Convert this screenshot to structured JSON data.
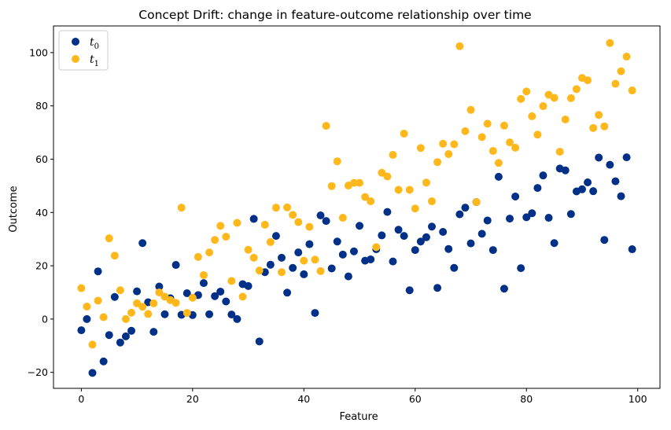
{
  "chart_data": {
    "type": "scatter",
    "title": "Concept Drift: change in feature-outcome relationship over time",
    "xlabel": "Feature",
    "ylabel": "Outcome",
    "xlim": [
      -5,
      104
    ],
    "ylim": [
      -26,
      110
    ],
    "xticks": [
      0,
      20,
      40,
      60,
      80,
      100
    ],
    "yticks": [
      -20,
      0,
      20,
      40,
      60,
      80,
      100
    ],
    "grid": false,
    "legend": "top-left",
    "x": [
      0,
      1,
      2,
      3,
      4,
      5,
      6,
      7,
      8,
      9,
      10,
      11,
      12,
      13,
      14,
      15,
      16,
      17,
      18,
      19,
      20,
      21,
      22,
      23,
      24,
      25,
      26,
      27,
      28,
      29,
      30,
      31,
      32,
      33,
      34,
      35,
      36,
      37,
      38,
      39,
      40,
      41,
      42,
      43,
      44,
      45,
      46,
      47,
      48,
      49,
      50,
      51,
      52,
      53,
      54,
      55,
      56,
      57,
      58,
      59,
      60,
      61,
      62,
      63,
      64,
      65,
      66,
      67,
      68,
      69,
      70,
      71,
      72,
      73,
      74,
      75,
      76,
      77,
      78,
      79,
      80,
      81,
      82,
      83,
      84,
      85,
      86,
      87,
      88,
      89,
      90,
      91,
      92,
      93,
      94,
      95,
      96,
      97,
      98,
      99
    ],
    "series": [
      {
        "name": "t",
        "subscript": "0",
        "color": "#003087",
        "values": [
          -4.2,
          0,
          -20.2,
          17.9,
          -15.9,
          -6,
          8.3,
          -8.8,
          -6.5,
          -4.4,
          10.4,
          28.5,
          6.3,
          -4.8,
          12.2,
          1.8,
          7.8,
          20.3,
          1.6,
          9.7,
          1.5,
          9,
          13.5,
          1.8,
          8.6,
          10.3,
          6.6,
          1.7,
          0,
          13.1,
          12.4,
          37.6,
          -8.4,
          17.6,
          20.4,
          31.2,
          23,
          9.9,
          19.2,
          25,
          16.8,
          28.1,
          2.3,
          38.9,
          36.8,
          19,
          29.1,
          24.2,
          16,
          25.4,
          35,
          21.9,
          22.4,
          26.2,
          31.4,
          40.2,
          21.6,
          33.5,
          31.2,
          10.8,
          25.9,
          29.1,
          30.7,
          34.7,
          11.7,
          32.7,
          26.3,
          19.2,
          39.3,
          41.8,
          28.4,
          43.9,
          32,
          37,
          25.9,
          53.4,
          11.4,
          37.7,
          46,
          19.1,
          38.2,
          39.7,
          49.2,
          53.9,
          38,
          28.5,
          56.5,
          55.8,
          39.4,
          47.9,
          48.7,
          51.3,
          48,
          60.6,
          29.7,
          57.9,
          51.7,
          46.1,
          60.7,
          26.2
        ]
      },
      {
        "name": "t",
        "subscript": "1",
        "color": "#FFB81C",
        "values": [
          11.6,
          4.7,
          -9.6,
          6.9,
          0.7,
          30.3,
          23.8,
          10.8,
          0,
          2.4,
          5.9,
          4.6,
          1.9,
          5.9,
          10,
          8.4,
          7.1,
          6.1,
          41.8,
          2.3,
          8,
          23.3,
          16.5,
          25,
          29.7,
          35,
          30.9,
          14.3,
          36.1,
          8.4,
          26,
          23,
          18.2,
          35.4,
          28.9,
          41.8,
          17.6,
          41.9,
          39.1,
          36.4,
          21.9,
          34.6,
          22.3,
          18,
          72.5,
          49.9,
          59.2,
          38,
          50.1,
          51.1,
          51.1,
          45.8,
          44.2,
          27,
          54.9,
          53.5,
          61.6,
          48.5,
          69.6,
          48.5,
          41.5,
          64.2,
          51.2,
          44.2,
          58.9,
          65.8,
          61.9,
          65.6,
          102.4,
          70.5,
          78.5,
          43.9,
          68.3,
          73.3,
          63.1,
          58.6,
          72.6,
          66.3,
          64.3,
          82.6,
          85.4,
          76.1,
          69.2,
          79.9,
          84.2,
          83,
          62.8,
          74.9,
          82.9,
          86.3,
          90.5,
          89.6,
          71.7,
          76.6,
          72.3,
          103.6,
          88.3,
          93,
          98.5,
          85.8
        ]
      }
    ]
  }
}
